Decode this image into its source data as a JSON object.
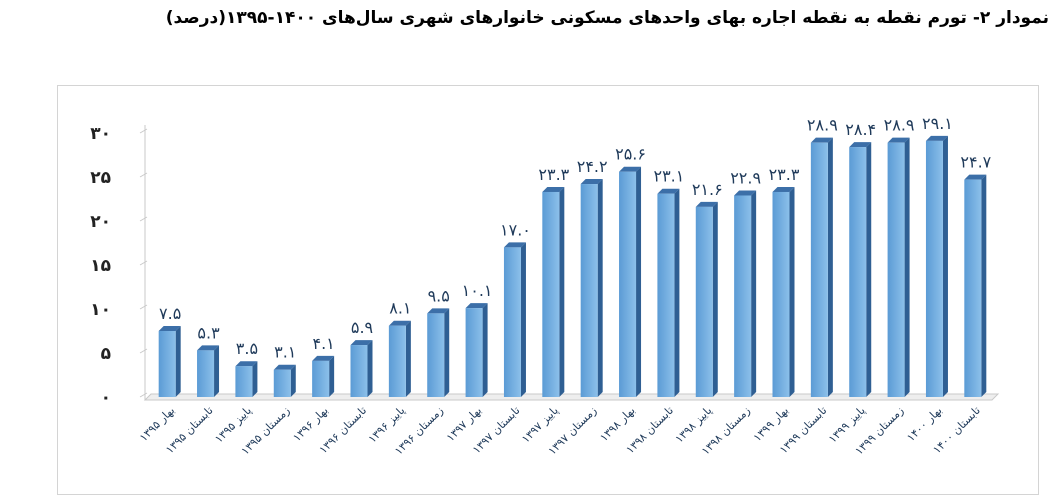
{
  "title": "نمودار ۲- تورم نقطه به نقطه اجاره بهای واحدهای مسکونی خانوارهای شهری سال‌های ۱۴۰۰-۱۳۹۵(درصد)",
  "chart_data": {
    "type": "bar",
    "title": "",
    "xlabel": "",
    "ylabel": "",
    "ylim": [
      0,
      30
    ],
    "yticks": [
      "۰",
      "۵",
      "۱۰",
      "۱۵",
      "۲۰",
      "۲۵",
      "۳۰"
    ],
    "grid": false,
    "legend": "none",
    "categories": [
      "بهار ۱۳۹۵",
      "تابستان ۱۳۹۵",
      "پاییز ۱۳۹۵",
      "زمستان ۱۳۹۵",
      "بهار ۱۳۹۶",
      "تابستان ۱۳۹۶",
      "پاییز ۱۳۹۶",
      "زمستان ۱۳۹۶",
      "بهار ۱۳۹۷",
      "تابستان ۱۳۹۷",
      "پاییز ۱۳۹۷",
      "زمستان ۱۳۹۷",
      "بهار ۱۳۹۸",
      "تابستان ۱۳۹۸",
      "پاییز ۱۳۹۸",
      "زمستان ۱۳۹۸",
      "بهار ۱۳۹۹",
      "تابستان ۱۳۹۹",
      "پاییز ۱۳۹۹",
      "زمستان ۱۳۹۹",
      "بهار ۱۴۰۰",
      "تابستان ۱۴۰۰"
    ],
    "values": [
      7.5,
      5.3,
      3.5,
      3.1,
      4.1,
      5.9,
      8.1,
      9.5,
      10.1,
      17.0,
      23.3,
      24.2,
      25.6,
      23.1,
      21.6,
      22.9,
      23.3,
      28.9,
      28.4,
      28.9,
      29.1,
      24.7
    ],
    "value_labels": [
      "۷.۵",
      "۵.۳",
      "۳.۵",
      "۳.۱",
      "۴.۱",
      "۵.۹",
      "۸.۱",
      "۹.۵",
      "۱۰.۱",
      "۱۷.۰",
      "۲۳.۳",
      "۲۴.۲",
      "۲۵.۶",
      "۲۳.۱",
      "۲۱.۶",
      "۲۲.۹",
      "۲۳.۳",
      "۲۸.۹",
      "۲۸.۴",
      "۲۸.۹",
      "۲۹.۱",
      "۲۴.۷"
    ],
    "colors": {
      "bar_front": "#5b9bd5",
      "bar_light": "#8cc0ea",
      "bar_side": "#2f5f93",
      "bar_top": "#3c6fa8",
      "axis": "#c9c9c9"
    }
  }
}
